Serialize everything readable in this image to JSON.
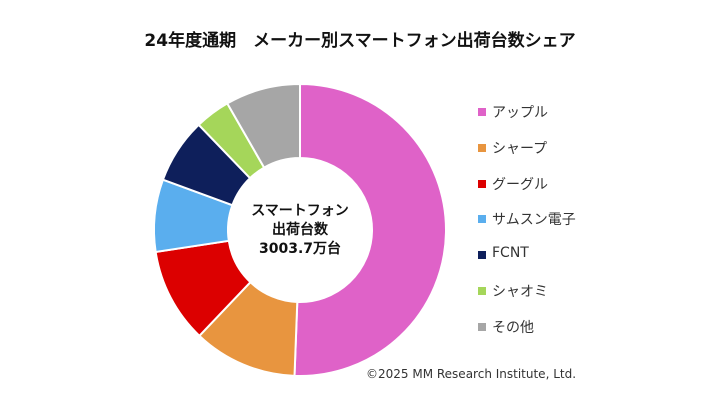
{
  "chart_data": {
    "type": "pie",
    "donut": true,
    "title": "24年度通期　メーカー別スマートフォン出荷台数シェア",
    "center_label": [
      "スマートフォン",
      "出荷台数",
      "3003.7万台"
    ],
    "categories": [
      "アップル",
      "シャープ",
      "グーグル",
      "サムスン電子",
      "FCNT",
      "シャオミ",
      "その他"
    ],
    "values": [
      50.6,
      11.5,
      10.5,
      8.0,
      7.2,
      3.9,
      8.3
    ],
    "unit": "%",
    "colors": [
      "#df62c8",
      "#e8953f",
      "#dc0000",
      "#5aaeee",
      "#0e1f5b",
      "#a5d65a",
      "#a6a6a6"
    ],
    "legend_position": "right",
    "start_angle": "12 o'clock",
    "direction": "clockwise"
  },
  "copyright": "©2025 MM Research Institute, Ltd."
}
